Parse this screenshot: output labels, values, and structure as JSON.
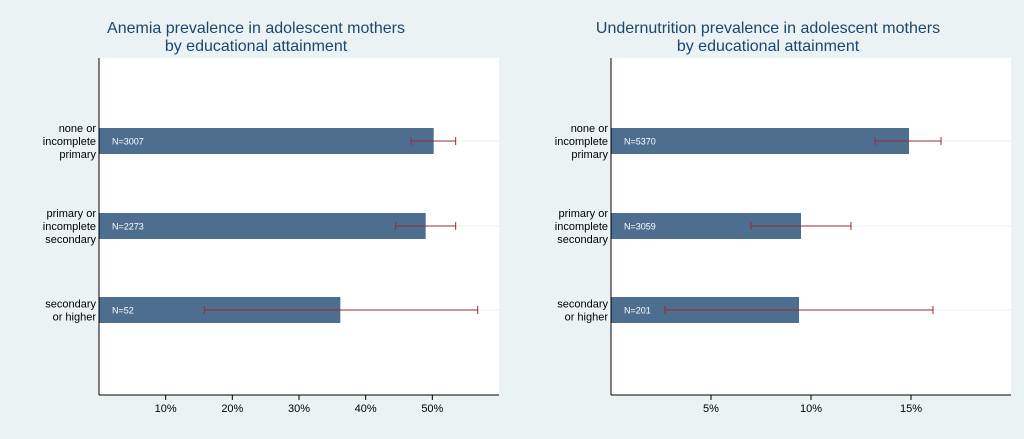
{
  "colors": {
    "background": "#eaf2f3",
    "plot_area": "#ffffff",
    "bar": "#4d6e8f",
    "error_bar": "#9a2b2f",
    "title": "#1a476f",
    "row_guide": "#eaf2f3"
  },
  "chart_data": [
    {
      "type": "bar",
      "orientation": "horizontal",
      "title": "Anemia prevalence in adolescent mothers\nby educational attainment",
      "xlabel": "",
      "ylabel": "",
      "categories": [
        [
          "none or",
          "incomplete",
          "primary"
        ],
        [
          "primary or",
          "incomplete",
          "secondary"
        ],
        [
          "secondary",
          "or higher"
        ]
      ],
      "values": [
        50.2,
        49.0,
        36.2
      ],
      "error_low": [
        46.8,
        44.5,
        15.8
      ],
      "error_high": [
        53.5,
        53.5,
        56.8
      ],
      "n_labels": [
        "N=3007",
        "N=2273",
        "N=52"
      ],
      "xlim": [
        0,
        60
      ],
      "x_ticks": [
        10,
        20,
        30,
        40,
        50
      ],
      "x_tick_labels": [
        "10%",
        "20%",
        "30%",
        "40%",
        "50%"
      ],
      "grid": false
    },
    {
      "type": "bar",
      "orientation": "horizontal",
      "title": "Undernutrition prevalence in adolescent mothers\nby educational attainment",
      "xlabel": "",
      "ylabel": "",
      "categories": [
        [
          "none or",
          "incomplete",
          "primary"
        ],
        [
          "primary or",
          "incomplete",
          "secondary"
        ],
        [
          "secondary",
          "or higher"
        ]
      ],
      "values": [
        14.9,
        9.5,
        9.4
      ],
      "error_low": [
        13.2,
        7.0,
        2.7
      ],
      "error_high": [
        16.5,
        12.0,
        16.1
      ],
      "n_labels": [
        "N=5370",
        "N=3059",
        "N=201"
      ],
      "xlim": [
        0,
        20
      ],
      "x_ticks": [
        5,
        10,
        15
      ],
      "x_tick_labels": [
        "5%",
        "10%",
        "15%"
      ],
      "grid": false
    }
  ]
}
